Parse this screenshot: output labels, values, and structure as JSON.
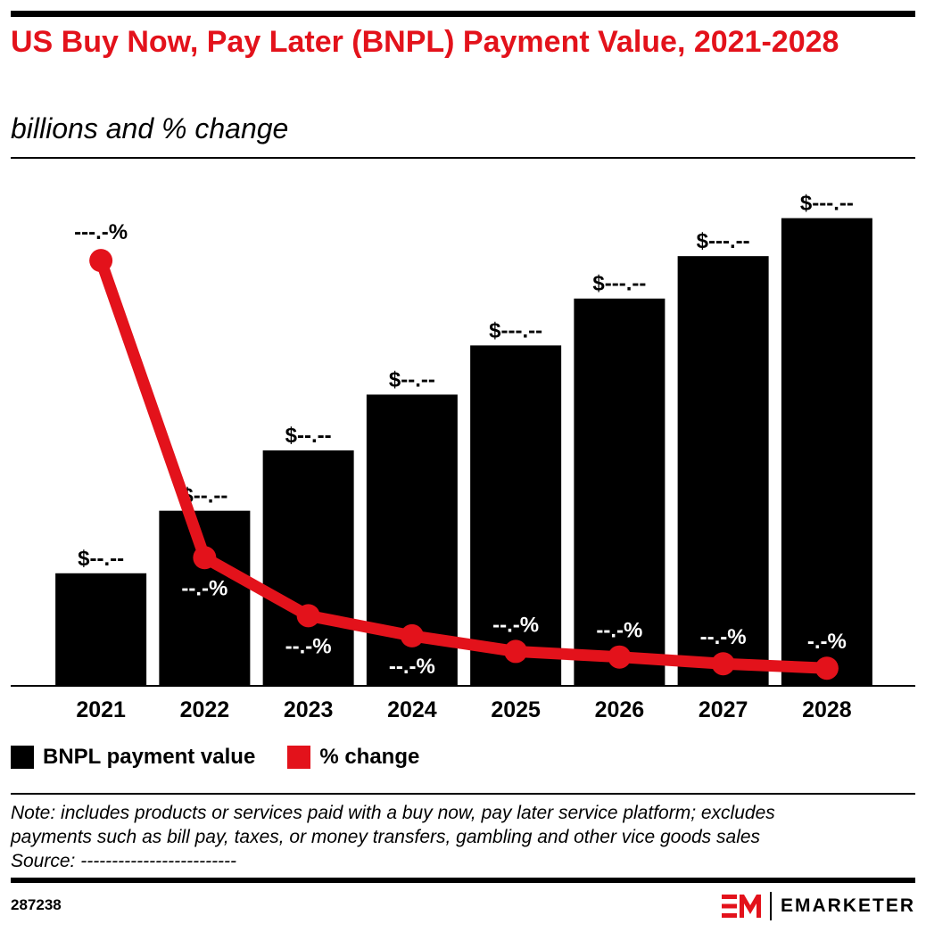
{
  "header": {
    "title": "US Buy Now, Pay Later (BNPL) Payment Value, 2021-2028",
    "subtitle": "billions and % change"
  },
  "chart_data": {
    "type": "bar",
    "categories": [
      "2021",
      "2022",
      "2023",
      "2024",
      "2025",
      "2026",
      "2027",
      "2028"
    ],
    "series": [
      {
        "name": "BNPL payment value",
        "type": "bar",
        "color": "#000000",
        "values": [
          25.0,
          39.0,
          52.5,
          65.0,
          76.0,
          86.5,
          96.0,
          104.5
        ],
        "labels": [
          "$--.--",
          "$--.--",
          "$--.--",
          "$--.--",
          "$---.--",
          "$---.--",
          "$---.--",
          "$---.--"
        ]
      },
      {
        "name": "% change",
        "type": "line",
        "color": "#e3121b",
        "values": [
          190.0,
          57.0,
          31.0,
          22.0,
          15.0,
          12.5,
          9.5,
          7.5
        ],
        "labels": [
          "---.-%",
          "--.-%",
          "--.-%",
          "--.-%",
          "--.-%",
          "--.-%",
          "--.-%",
          "-.-%"
        ]
      }
    ],
    "ylim": [
      0,
      115
    ],
    "y2lim": [
      0,
      230
    ],
    "grid": false,
    "legend_position": "bottom-left"
  },
  "legend": {
    "bar_label": "BNPL payment value",
    "line_label": "% change"
  },
  "footer": {
    "note_lines": [
      "Note: includes products or services paid with a buy now, pay later service platform; excludes",
      "payments such as bill pay, taxes, or money transfers, gambling and other vice goods sales"
    ],
    "source": "Source: -------------------------",
    "chart_id": "287238",
    "brand": "EMARKETER"
  },
  "colors": {
    "accent": "#e3121b",
    "bar": "#000000",
    "text": "#000000"
  }
}
